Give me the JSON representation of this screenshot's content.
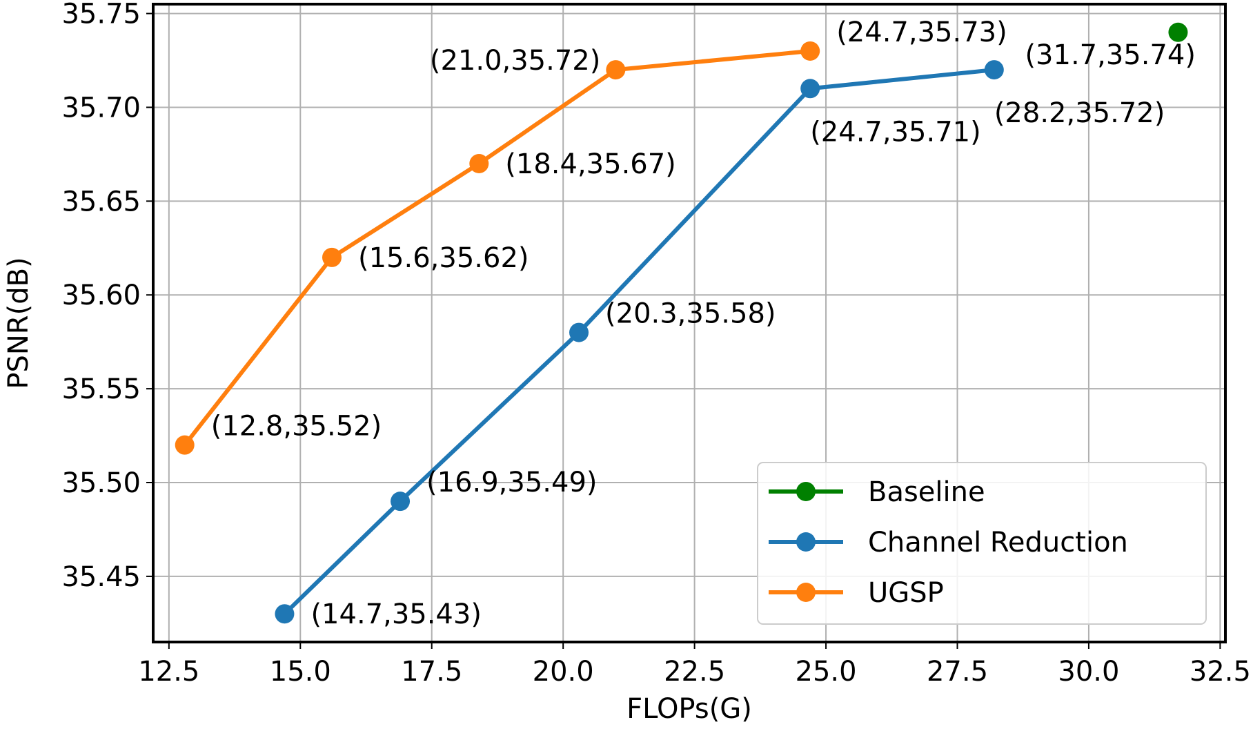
{
  "chart_data": {
    "type": "line",
    "xlabel": "FLOPs(G)",
    "ylabel": "PSNR(dB)",
    "xlim": [
      12.2,
      32.6
    ],
    "ylim": [
      35.415,
      35.755
    ],
    "x_ticks": [
      12.5,
      15.0,
      17.5,
      20.0,
      22.5,
      25.0,
      27.5,
      30.0,
      32.5
    ],
    "x_tick_labels": [
      "12.5",
      "15.0",
      "17.5",
      "20.0",
      "22.5",
      "25.0",
      "27.5",
      "30.0",
      "32.5"
    ],
    "y_ticks": [
      35.45,
      35.5,
      35.55,
      35.6,
      35.65,
      35.7,
      35.75
    ],
    "y_tick_labels": [
      "35.45",
      "35.50",
      "35.55",
      "35.60",
      "35.65",
      "35.70",
      "35.75"
    ],
    "grid": true,
    "legend_position": "lower-right",
    "series": [
      {
        "name": "Baseline",
        "color": "#008000",
        "line": false,
        "points": [
          {
            "x": 31.7,
            "y": 35.74,
            "label": "(31.7,35.74)",
            "label_pos": "below-left"
          }
        ]
      },
      {
        "name": "Channel Reduction",
        "color": "#1f77b4",
        "line": true,
        "points": [
          {
            "x": 14.7,
            "y": 35.43,
            "label": "(14.7,35.43)",
            "label_pos": "right"
          },
          {
            "x": 16.9,
            "y": 35.49,
            "label": "(16.9,35.49)",
            "label_pos": "upper-right"
          },
          {
            "x": 20.3,
            "y": 35.58,
            "label": "(20.3,35.58)",
            "label_pos": "upper-right"
          },
          {
            "x": 24.7,
            "y": 35.71,
            "label": "(24.7,35.71)",
            "label_pos": "below"
          },
          {
            "x": 28.2,
            "y": 35.72,
            "label": "(28.2,35.72)",
            "label_pos": "below"
          }
        ]
      },
      {
        "name": "UGSP",
        "color": "#ff7f0e",
        "line": true,
        "points": [
          {
            "x": 12.8,
            "y": 35.52,
            "label": "(12.8,35.52)",
            "label_pos": "upper-right"
          },
          {
            "x": 15.6,
            "y": 35.62,
            "label": "(15.6,35.62)",
            "label_pos": "right"
          },
          {
            "x": 18.4,
            "y": 35.67,
            "label": "(18.4,35.67)",
            "label_pos": "right"
          },
          {
            "x": 21.0,
            "y": 35.72,
            "label": "(21.0,35.72)",
            "label_pos": "left"
          },
          {
            "x": 24.7,
            "y": 35.73,
            "label": "(24.7,35.73)",
            "label_pos": "upper-right"
          }
        ]
      }
    ]
  }
}
